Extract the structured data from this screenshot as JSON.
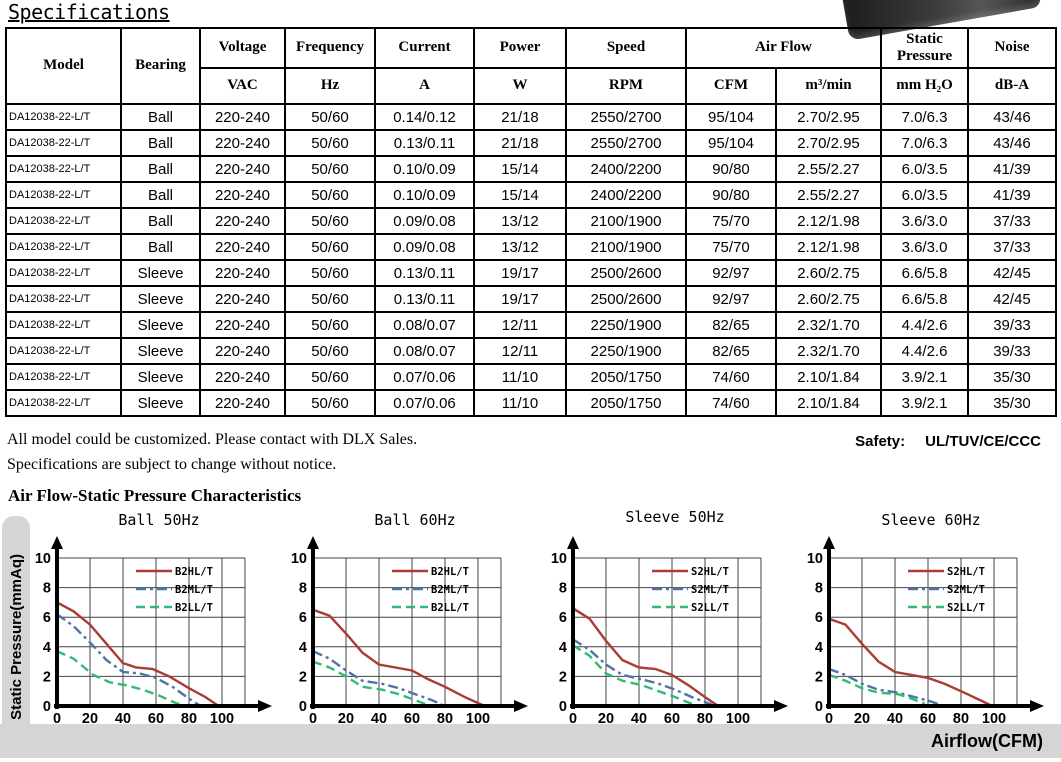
{
  "page": {
    "title": "Specifications"
  },
  "table": {
    "header_row1": {
      "model": "Model",
      "bearing": "Bearing",
      "voltage": "Voltage",
      "frequency": "Frequency",
      "current": "Current",
      "power": "Power",
      "speed": "Speed",
      "airflow": "Air Flow",
      "static_pressure": "Static Pressure",
      "noise": "Noise"
    },
    "header_row2": {
      "voltage": "VAC",
      "frequency": "Hz",
      "current": "A",
      "power": "W",
      "speed": "RPM",
      "cfm": "CFM",
      "m3min": "m³/min",
      "static_pressure": "mm H₂O",
      "noise": "dB-A"
    },
    "rows": [
      [
        "DA12038-22-L/T",
        "Ball",
        "220-240",
        "50/60",
        "0.14/0.12",
        "21/18",
        "2550/2700",
        "95/104",
        "2.70/2.95",
        "7.0/6.3",
        "43/46"
      ],
      [
        "DA12038-22-L/T",
        "Ball",
        "220-240",
        "50/60",
        "0.13/0.11",
        "21/18",
        "2550/2700",
        "95/104",
        "2.70/2.95",
        "7.0/6.3",
        "43/46"
      ],
      [
        "DA12038-22-L/T",
        "Ball",
        "220-240",
        "50/60",
        "0.10/0.09",
        "15/14",
        "2400/2200",
        "90/80",
        "2.55/2.27",
        "6.0/3.5",
        "41/39"
      ],
      [
        "DA12038-22-L/T",
        "Ball",
        "220-240",
        "50/60",
        "0.10/0.09",
        "15/14",
        "2400/2200",
        "90/80",
        "2.55/2.27",
        "6.0/3.5",
        "41/39"
      ],
      [
        "DA12038-22-L/T",
        "Ball",
        "220-240",
        "50/60",
        "0.09/0.08",
        "13/12",
        "2100/1900",
        "75/70",
        "2.12/1.98",
        "3.6/3.0",
        "37/33"
      ],
      [
        "DA12038-22-L/T",
        "Ball",
        "220-240",
        "50/60",
        "0.09/0.08",
        "13/12",
        "2100/1900",
        "75/70",
        "2.12/1.98",
        "3.6/3.0",
        "37/33"
      ],
      [
        "DA12038-22-L/T",
        "Sleeve",
        "220-240",
        "50/60",
        "0.13/0.11",
        "19/17",
        "2500/2600",
        "92/97",
        "2.60/2.75",
        "6.6/5.8",
        "42/45"
      ],
      [
        "DA12038-22-L/T",
        "Sleeve",
        "220-240",
        "50/60",
        "0.13/0.11",
        "19/17",
        "2500/2600",
        "92/97",
        "2.60/2.75",
        "6.6/5.8",
        "42/45"
      ],
      [
        "DA12038-22-L/T",
        "Sleeve",
        "220-240",
        "50/60",
        "0.08/0.07",
        "12/11",
        "2250/1900",
        "82/65",
        "2.32/1.70",
        "4.4/2.6",
        "39/33"
      ],
      [
        "DA12038-22-L/T",
        "Sleeve",
        "220-240",
        "50/60",
        "0.08/0.07",
        "12/11",
        "2250/1900",
        "82/65",
        "2.32/1.70",
        "4.4/2.6",
        "39/33"
      ],
      [
        "DA12038-22-L/T",
        "Sleeve",
        "220-240",
        "50/60",
        "0.07/0.06",
        "11/10",
        "2050/1750",
        "74/60",
        "2.10/1.84",
        "3.9/2.1",
        "35/30"
      ],
      [
        "DA12038-22-L/T",
        "Sleeve",
        "220-240",
        "50/60",
        "0.07/0.06",
        "11/10",
        "2050/1750",
        "74/60",
        "2.10/1.84",
        "3.9/2.1",
        "35/30"
      ]
    ]
  },
  "notes": {
    "line1": "All model could be customized. Please contact with DLX Sales.",
    "line2": "Specifications are subject to change without notice.",
    "safety_label": "Safety:",
    "safety_value": "UL/TUV/CE/CCC"
  },
  "charts_section": {
    "title": "Air Flow-Static Pressure Characteristics",
    "ylabel": "Static Pressure(mmAq)",
    "xlabel": "Airflow(CFM)"
  },
  "colors": {
    "red": "#a93c34",
    "blue": "#4e74a6",
    "green": "#2fbc72",
    "grid": "#444444",
    "bar_gray": "#d5d5d5"
  },
  "chart_data": [
    {
      "type": "line",
      "title": "Ball 50Hz",
      "xlabel": "Airflow(CFM)",
      "ylabel": "Static Pressure(mmAq)",
      "xlim": [
        0,
        100
      ],
      "ylim": [
        0,
        10
      ],
      "xticks": [
        0,
        20,
        40,
        60,
        80,
        100
      ],
      "yticks": [
        0,
        2,
        4,
        6,
        8,
        10
      ],
      "grid": true,
      "legend_position": "top-right",
      "series": [
        {
          "name": "B2HL/T",
          "style": "solid",
          "color": "#a93c34",
          "points": [
            [
              0,
              7.0
            ],
            [
              10,
              6.4
            ],
            [
              20,
              5.5
            ],
            [
              30,
              4.2
            ],
            [
              40,
              2.9
            ],
            [
              48,
              2.6
            ],
            [
              58,
              2.5
            ],
            [
              68,
              2.0
            ],
            [
              80,
              1.2
            ],
            [
              90,
              0.6
            ],
            [
              98,
              0
            ]
          ]
        },
        {
          "name": "B2ML/T",
          "style": "dashdot",
          "color": "#4e74a6",
          "points": [
            [
              0,
              6.2
            ],
            [
              10,
              5.4
            ],
            [
              20,
              4.3
            ],
            [
              30,
              3.1
            ],
            [
              40,
              2.3
            ],
            [
              50,
              2.2
            ],
            [
              60,
              1.9
            ],
            [
              70,
              1.3
            ],
            [
              80,
              0.5
            ],
            [
              87,
              0
            ]
          ]
        },
        {
          "name": "B2LL/T",
          "style": "dash",
          "color": "#2fbc72",
          "points": [
            [
              0,
              3.7
            ],
            [
              10,
              3.2
            ],
            [
              22,
              2.1
            ],
            [
              32,
              1.6
            ],
            [
              42,
              1.4
            ],
            [
              52,
              1.1
            ],
            [
              62,
              0.7
            ],
            [
              72,
              0.2
            ],
            [
              77,
              0.05
            ]
          ]
        }
      ]
    },
    {
      "type": "line",
      "title": "Ball 60Hz",
      "xlabel": "Airflow(CFM)",
      "ylabel": "Static Pressure(mmAq)",
      "xlim": [
        0,
        100
      ],
      "ylim": [
        0,
        10
      ],
      "xticks": [
        0,
        20,
        40,
        60,
        80,
        100
      ],
      "yticks": [
        0,
        2,
        4,
        6,
        8,
        10
      ],
      "grid": true,
      "legend_position": "top-right",
      "series": [
        {
          "name": "B2HL/T",
          "style": "solid",
          "color": "#a93c34",
          "points": [
            [
              0,
              6.5
            ],
            [
              10,
              6.1
            ],
            [
              20,
              4.9
            ],
            [
              30,
              3.6
            ],
            [
              40,
              2.8
            ],
            [
              50,
              2.6
            ],
            [
              60,
              2.4
            ],
            [
              70,
              1.8
            ],
            [
              80,
              1.3
            ],
            [
              92,
              0.6
            ],
            [
              104,
              0
            ]
          ]
        },
        {
          "name": "B2ML/T",
          "style": "dashdot",
          "color": "#4e74a6",
          "points": [
            [
              0,
              3.7
            ],
            [
              10,
              3.2
            ],
            [
              20,
              2.4
            ],
            [
              30,
              1.7
            ],
            [
              42,
              1.5
            ],
            [
              52,
              1.2
            ],
            [
              62,
              0.8
            ],
            [
              72,
              0.4
            ],
            [
              78,
              0.1
            ]
          ]
        },
        {
          "name": "B2LL/T",
          "style": "dash",
          "color": "#2fbc72",
          "points": [
            [
              0,
              3.0
            ],
            [
              10,
              2.6
            ],
            [
              20,
              2.0
            ],
            [
              30,
              1.3
            ],
            [
              42,
              1.1
            ],
            [
              52,
              0.8
            ],
            [
              62,
              0.4
            ],
            [
              70,
              0.05
            ]
          ]
        }
      ]
    },
    {
      "type": "line",
      "title": "Sleeve 50Hz",
      "xlabel": "Airflow(CFM)",
      "ylabel": "Static Pressure(mmAq)",
      "xlim": [
        0,
        100
      ],
      "ylim": [
        0,
        10
      ],
      "xticks": [
        0,
        20,
        40,
        60,
        80,
        100
      ],
      "yticks": [
        0,
        2,
        4,
        6,
        8,
        10
      ],
      "grid": true,
      "legend_position": "top-right",
      "series": [
        {
          "name": "S2HL/T",
          "style": "solid",
          "color": "#a93c34",
          "points": [
            [
              0,
              6.6
            ],
            [
              10,
              5.9
            ],
            [
              20,
              4.4
            ],
            [
              30,
              3.1
            ],
            [
              40,
              2.6
            ],
            [
              50,
              2.5
            ],
            [
              60,
              2.1
            ],
            [
              70,
              1.4
            ],
            [
              80,
              0.6
            ],
            [
              88,
              0
            ]
          ]
        },
        {
          "name": "S2ML/T",
          "style": "dashdot",
          "color": "#4e74a6",
          "points": [
            [
              0,
              4.5
            ],
            [
              10,
              3.8
            ],
            [
              20,
              2.8
            ],
            [
              30,
              2.1
            ],
            [
              42,
              1.8
            ],
            [
              52,
              1.5
            ],
            [
              62,
              1.1
            ],
            [
              72,
              0.6
            ],
            [
              84,
              0.1
            ]
          ]
        },
        {
          "name": "S2LL/T",
          "style": "dash",
          "color": "#2fbc72",
          "points": [
            [
              0,
              4.1
            ],
            [
              10,
              3.4
            ],
            [
              20,
              2.2
            ],
            [
              30,
              1.7
            ],
            [
              42,
              1.4
            ],
            [
              52,
              1.0
            ],
            [
              62,
              0.6
            ],
            [
              73,
              0.1
            ]
          ]
        }
      ]
    },
    {
      "type": "line",
      "title": "Sleeve 60Hz",
      "xlabel": "Airflow(CFM)",
      "ylabel": "Static Pressure(mmAq)",
      "xlim": [
        0,
        100
      ],
      "ylim": [
        0,
        10
      ],
      "xticks": [
        0,
        20,
        40,
        60,
        80,
        100
      ],
      "yticks": [
        0,
        2,
        4,
        6,
        8,
        10
      ],
      "grid": true,
      "legend_position": "top-right",
      "series": [
        {
          "name": "S2HL/T",
          "style": "solid",
          "color": "#a93c34",
          "points": [
            [
              0,
              5.9
            ],
            [
              10,
              5.5
            ],
            [
              20,
              4.2
            ],
            [
              30,
              3.0
            ],
            [
              40,
              2.3
            ],
            [
              50,
              2.1
            ],
            [
              60,
              1.9
            ],
            [
              70,
              1.5
            ],
            [
              82,
              0.9
            ],
            [
              99,
              0
            ]
          ]
        },
        {
          "name": "S2ML/T",
          "style": "dashdot",
          "color": "#4e74a6",
          "points": [
            [
              0,
              2.5
            ],
            [
              10,
              2.1
            ],
            [
              20,
              1.5
            ],
            [
              30,
              1.1
            ],
            [
              42,
              0.9
            ],
            [
              52,
              0.6
            ],
            [
              62,
              0.3
            ],
            [
              68,
              0.05
            ]
          ]
        },
        {
          "name": "S2LL/T",
          "style": "dash",
          "color": "#2fbc72",
          "points": [
            [
              0,
              2.1
            ],
            [
              10,
              1.7
            ],
            [
              20,
              1.2
            ],
            [
              30,
              0.9
            ],
            [
              42,
              0.8
            ],
            [
              50,
              0.5
            ],
            [
              58,
              0.15
            ]
          ]
        }
      ]
    }
  ]
}
